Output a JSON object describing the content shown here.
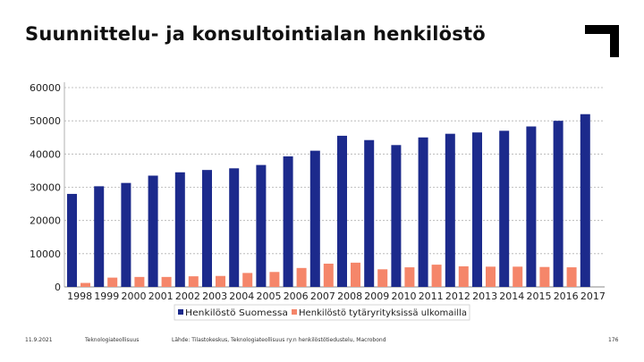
{
  "slide": {
    "title": "Suunnittelu- ja konsultointialan henkilöstö"
  },
  "footer": {
    "date": "11.9.2021",
    "org": "Teknologiateollisuus",
    "source": "Lähde: Tilastokeskus, Teknologiateollisuus ry:n henkilöstötiedustelu, Macrobond",
    "page": "176"
  },
  "colors": {
    "series_1": "#1c2a8c",
    "series_2": "#f5866a",
    "grid": "#b0b0b0",
    "logo": "#000000"
  },
  "icons": {
    "logo": "corner-bracket-logo"
  },
  "chart_data": {
    "type": "bar",
    "categories": [
      "1998",
      "1999",
      "2000",
      "2001",
      "2002",
      "2003",
      "2004",
      "2005",
      "2006",
      "2007",
      "2008",
      "2009",
      "2010",
      "2011",
      "2012",
      "2013",
      "2014",
      "2015",
      "2016",
      "2017"
    ],
    "series": [
      {
        "name": "Henkilöstö Suomessa",
        "values": [
          28000,
          30300,
          31300,
          33500,
          34500,
          35200,
          35700,
          36700,
          39300,
          41000,
          45500,
          44200,
          42700,
          45000,
          46100,
          46500,
          47000,
          48300,
          50000,
          52000
        ]
      },
      {
        "name": "Henkilöstö tytäryrityksissä ulkomailla",
        "values": [
          1200,
          2800,
          3000,
          3000,
          3200,
          3300,
          4200,
          4500,
          5700,
          7000,
          7300,
          5300,
          5900,
          6700,
          6200,
          6100,
          6100,
          6000,
          5900,
          0
        ]
      }
    ],
    "ylim": [
      0,
      60000
    ],
    "yticks": [
      "0",
      "10000",
      "20000",
      "30000",
      "40000",
      "50000",
      "60000"
    ],
    "grid": true,
    "legend_position": "bottom-center"
  }
}
